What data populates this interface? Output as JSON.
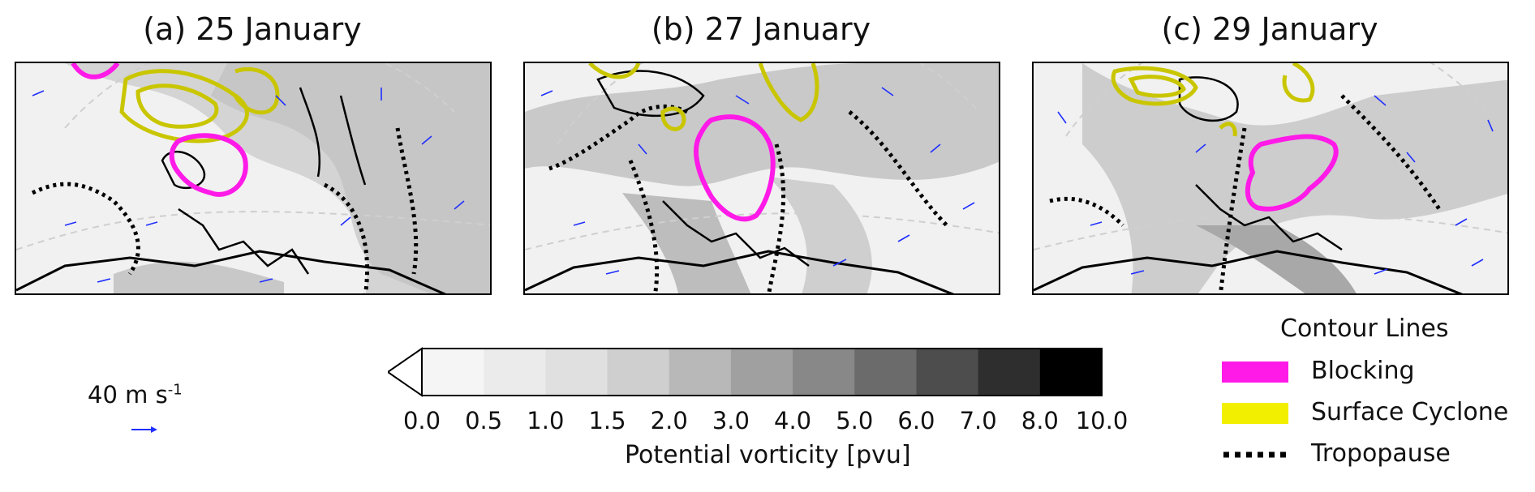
{
  "panels": [
    {
      "title": "(a) 25 January"
    },
    {
      "title": "(b) 27 January"
    },
    {
      "title": "(c) 29 January"
    }
  ],
  "colorbar": {
    "label": "Potential vorticity [pvu]",
    "ticks": [
      "0.0",
      "0.5",
      "1.0",
      "1.5",
      "2.0",
      "3.0",
      "4.0",
      "5.0",
      "6.0",
      "7.0",
      "8.0",
      "10.0"
    ],
    "colors": [
      "#ffffff",
      "#f5f5f5",
      "#ebebeb",
      "#e0e0e0",
      "#cfcfcf",
      "#b8b8b8",
      "#a0a0a0",
      "#888888",
      "#6b6b6b",
      "#4d4d4d",
      "#2e2e2e",
      "#000000"
    ]
  },
  "wind_reference": {
    "label": "40 m s",
    "exponent": "-1",
    "color": "#1f2fff"
  },
  "legend": {
    "title": "Contour Lines",
    "items": [
      {
        "label": "Blocking",
        "color": "#ff1ae8",
        "style": "solid"
      },
      {
        "label": "Surface Cyclone",
        "color": "#f2ef00",
        "style": "solid"
      },
      {
        "label": "Tropopause",
        "color": "#000000",
        "style": "dotted"
      }
    ]
  }
}
